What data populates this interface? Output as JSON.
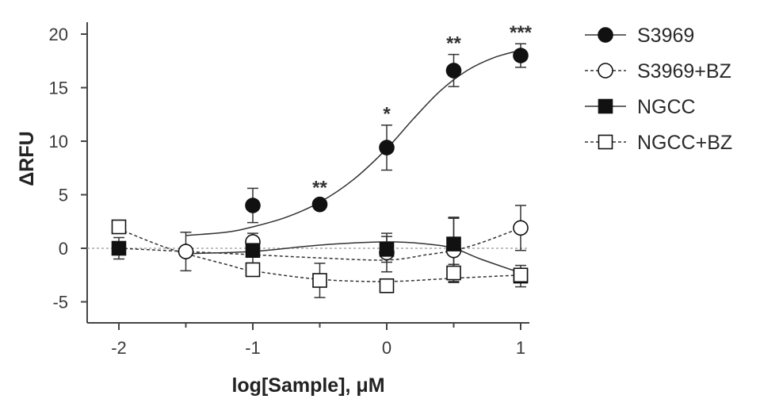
{
  "chart_data": {
    "type": "scatter",
    "xlabel": "log[Sample], μM",
    "ylabel": "ΔRFU",
    "xlim": [
      -2.25,
      1.25
    ],
    "ylim": [
      -7,
      22
    ],
    "xticks": [
      -2,
      -1,
      0,
      1
    ],
    "yticks": [
      -5,
      0,
      5,
      10,
      15,
      20
    ],
    "xtick_labels": [
      "-2",
      "-1",
      "0",
      "1"
    ],
    "ytick_labels": [
      "-5",
      "0",
      "5",
      "10",
      "15",
      "20"
    ],
    "reference_line_y": 0,
    "legend_position": "right",
    "grid": false,
    "series": [
      {
        "name": "S3969",
        "marker": "filled-circle",
        "line": "solid",
        "points": [
          {
            "x": -1.0,
            "y": 4.0,
            "err": 1.6
          },
          {
            "x": -0.5,
            "y": 4.1,
            "err": 0.4
          },
          {
            "x": 0.0,
            "y": 9.4,
            "err": 2.1
          },
          {
            "x": 0.5,
            "y": 16.6,
            "err": 1.5
          },
          {
            "x": 1.0,
            "y": 18.0,
            "err": 1.1
          }
        ],
        "fit": {
          "x": [
            -1.5,
            -1.2,
            -1.0,
            -0.75,
            -0.5,
            -0.25,
            0.0,
            0.2,
            0.4,
            0.6,
            0.8,
            1.0
          ],
          "y": [
            1.2,
            1.5,
            2.0,
            2.9,
            4.3,
            6.4,
            9.3,
            12.1,
            14.7,
            16.6,
            17.8,
            18.5
          ]
        }
      },
      {
        "name": "S3969+BZ",
        "marker": "open-circle",
        "line": "dashed",
        "points": [
          {
            "x": -1.5,
            "y": -0.3,
            "err": 1.8
          },
          {
            "x": -1.0,
            "y": 0.6,
            "err": 0.8
          },
          {
            "x": 0.0,
            "y": -0.4,
            "err": 1.8
          },
          {
            "x": 0.5,
            "y": -0.2,
            "err": 3.0
          },
          {
            "x": 1.0,
            "y": 1.9,
            "err": 2.1
          }
        ],
        "fit": {
          "x": [
            -2.0,
            -1.5,
            -1.0,
            -0.5,
            0.0,
            0.3,
            0.5,
            0.7,
            1.0
          ],
          "y": [
            0.0,
            -0.3,
            -0.6,
            -0.9,
            -1.1,
            -0.6,
            -0.2,
            0.5,
            1.9
          ]
        }
      },
      {
        "name": "NGCC",
        "marker": "filled-square",
        "line": "solid",
        "points": [
          {
            "x": -2.0,
            "y": 0.0,
            "err": 1.0
          },
          {
            "x": -1.0,
            "y": -0.2,
            "err": 1.2
          },
          {
            "x": 0.0,
            "y": -0.1,
            "err": 1.2
          },
          {
            "x": 0.5,
            "y": 0.4,
            "err": 2.5
          },
          {
            "x": 1.0,
            "y": -2.6,
            "err": 1.0
          }
        ],
        "fit": {
          "x": [
            -1.5,
            -1.0,
            -0.5,
            0.0,
            0.3,
            0.5,
            0.7,
            1.0
          ],
          "y": [
            -0.5,
            -0.3,
            0.3,
            0.6,
            0.4,
            0.0,
            -1.0,
            -2.3
          ]
        }
      },
      {
        "name": "NGCC+BZ",
        "marker": "open-square",
        "line": "dashed",
        "points": [
          {
            "x": -2.0,
            "y": 2.0,
            "err": 0.4
          },
          {
            "x": -1.0,
            "y": -2.0,
            "err": 0.6
          },
          {
            "x": -0.5,
            "y": -3.0,
            "err": 1.6
          },
          {
            "x": 0.0,
            "y": -3.5,
            "err": 0.4
          },
          {
            "x": 0.5,
            "y": -2.3,
            "err": 0.8
          },
          {
            "x": 1.0,
            "y": -2.5,
            "err": 0.6
          }
        ],
        "fit": {
          "x": [
            -2.0,
            -1.7,
            -1.5,
            -1.2,
            -1.0,
            -0.5,
            0.0,
            0.5,
            1.0
          ],
          "y": [
            1.8,
            0.3,
            -0.5,
            -1.5,
            -2.1,
            -2.9,
            -3.1,
            -2.8,
            -2.5
          ]
        }
      }
    ],
    "annotations": [
      {
        "text": "**",
        "x": -0.5,
        "y": 5.8
      },
      {
        "text": "*",
        "x": 0.0,
        "y": 12.7
      },
      {
        "text": "**",
        "x": 0.5,
        "y": 19.3
      },
      {
        "text": "***",
        "x": 1.0,
        "y": 20.3
      }
    ]
  }
}
